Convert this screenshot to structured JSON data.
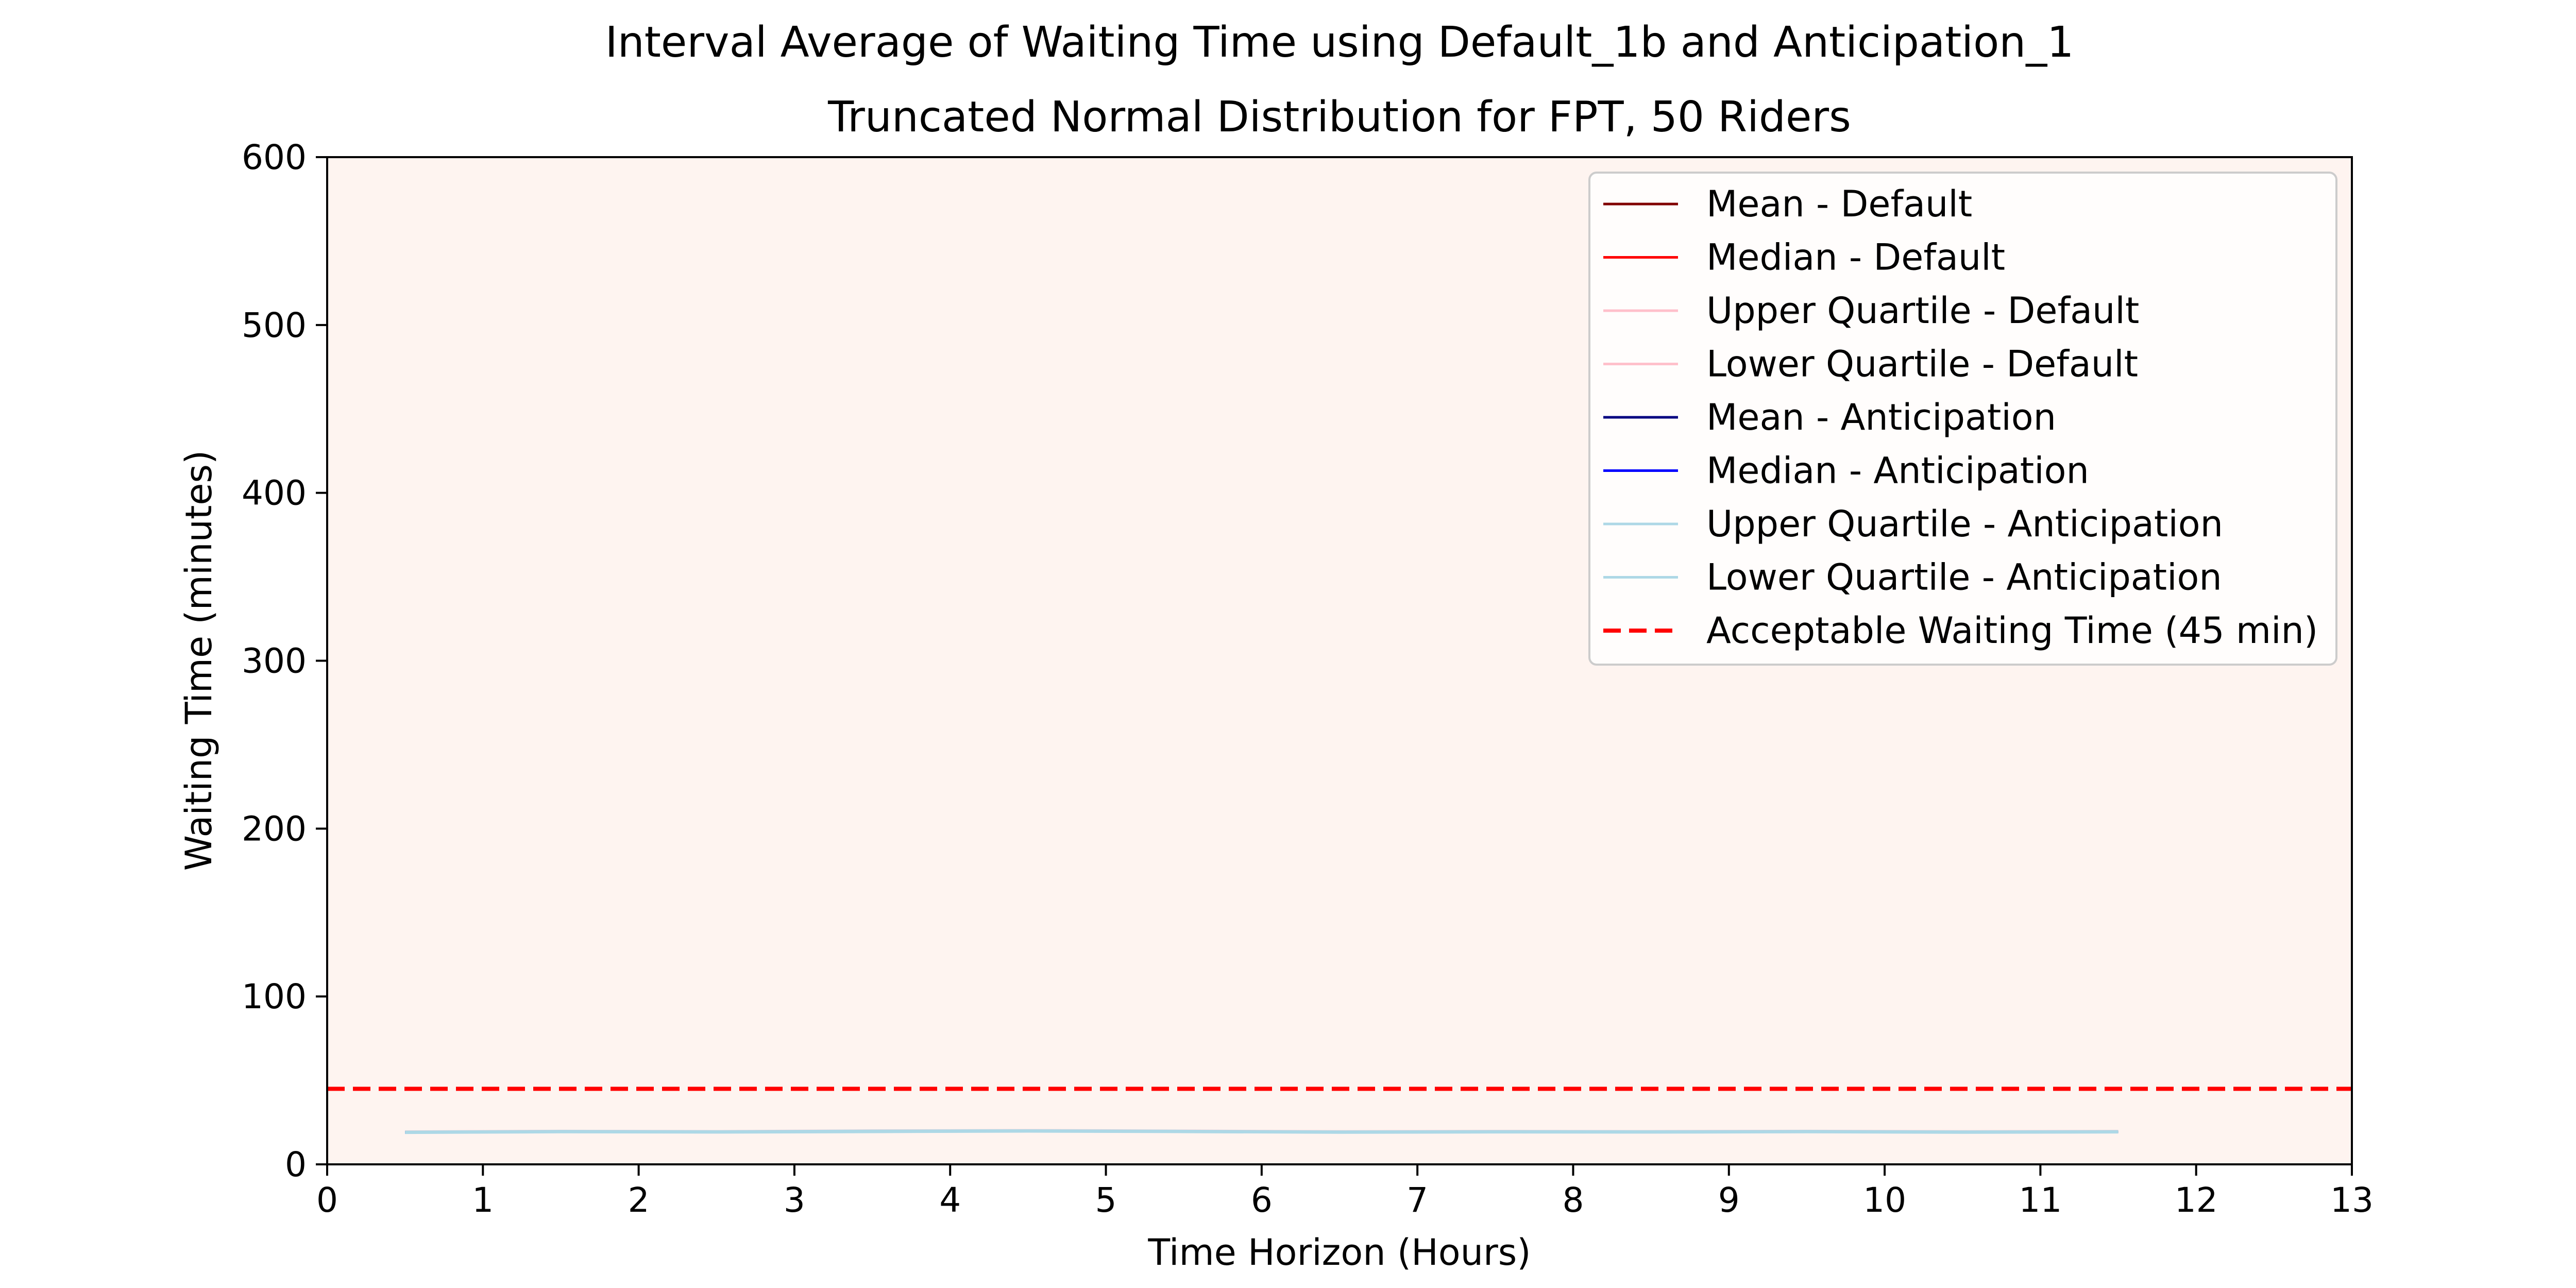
{
  "chart_data": {
    "type": "line",
    "title": "Interval Average of Waiting Time using Default_1b and Anticipation_1",
    "subtitle": "Truncated Normal Distribution for FPT, 50 Riders",
    "xlabel": "Time Horizon (Hours)",
    "ylabel": "Waiting Time (minutes)",
    "xlim": [
      0,
      13
    ],
    "ylim": [
      0,
      600
    ],
    "xticks": [
      "0",
      "1",
      "2",
      "3",
      "4",
      "5",
      "6",
      "7",
      "8",
      "9",
      "10",
      "11",
      "12",
      "13"
    ],
    "yticks": [
      "0",
      "100",
      "200",
      "300",
      "400",
      "500",
      "600"
    ],
    "grid": false,
    "legend_position": "top-right",
    "plot_background": "#fef4f0",
    "x": [
      0.5,
      1.5,
      2.5,
      3.5,
      4.5,
      5.5,
      6.5,
      7.5,
      8.5,
      9.5,
      10.5,
      11.5
    ],
    "series": [
      {
        "name": "Mean - Default",
        "color": "#800000",
        "values": [
          19.2,
          19.6,
          19.4,
          19.8,
          20.0,
          19.7,
          19.3,
          19.5,
          19.4,
          19.6,
          19.3,
          19.5
        ]
      },
      {
        "name": "Median - Default",
        "color": "#ff0000",
        "values": [
          19.0,
          19.4,
          19.2,
          19.5,
          19.8,
          19.5,
          19.1,
          19.3,
          19.2,
          19.4,
          19.1,
          19.3
        ]
      },
      {
        "name": "Upper Quartile - Default",
        "color": "#ffc0cb",
        "values": [
          19.6,
          20.0,
          19.8,
          20.2,
          20.4,
          20.1,
          19.7,
          19.9,
          19.8,
          20.0,
          19.7,
          19.9
        ]
      },
      {
        "name": "Lower Quartile - Default",
        "color": "#ffc0cb",
        "values": [
          18.8,
          19.2,
          19.0,
          19.3,
          19.6,
          19.3,
          18.9,
          19.1,
          19.0,
          19.2,
          18.9,
          19.1
        ]
      },
      {
        "name": "Mean - Anticipation",
        "color": "#000080",
        "values": [
          19.1,
          19.5,
          19.3,
          19.7,
          19.9,
          19.6,
          19.2,
          19.4,
          19.3,
          19.5,
          19.2,
          19.4
        ]
      },
      {
        "name": "Median - Anticipation",
        "color": "#0000ff",
        "values": [
          18.9,
          19.3,
          19.1,
          19.4,
          19.7,
          19.4,
          19.0,
          19.2,
          19.1,
          19.3,
          19.0,
          19.2
        ]
      },
      {
        "name": "Upper Quartile - Anticipation",
        "color": "#add8e6",
        "values": [
          19.5,
          19.9,
          19.7,
          20.1,
          20.3,
          20.0,
          19.6,
          19.8,
          19.7,
          19.9,
          19.6,
          19.8
        ]
      },
      {
        "name": "Lower Quartile - Anticipation",
        "color": "#add8e6",
        "values": [
          18.7,
          19.1,
          18.9,
          19.2,
          19.5,
          19.2,
          18.8,
          19.0,
          18.9,
          19.1,
          18.8,
          19.0
        ]
      }
    ],
    "reference_line": {
      "name": "Acceptable Waiting Time (45 min)",
      "y": 45,
      "color": "#ff0000",
      "style": "dashed"
    }
  }
}
